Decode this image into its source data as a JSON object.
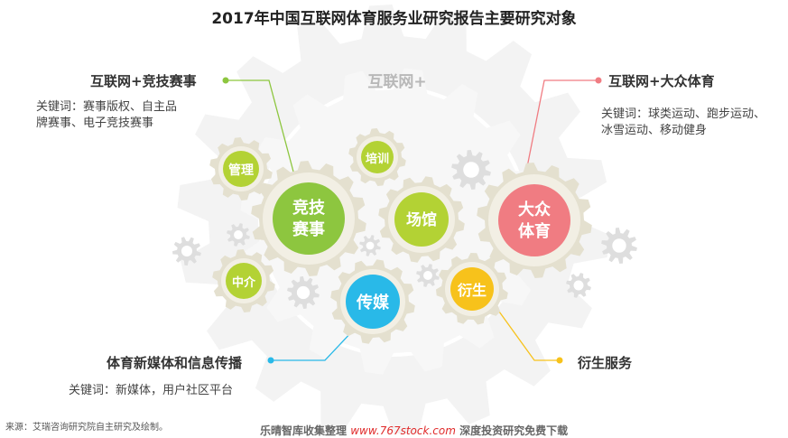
{
  "title": "2017年中国互联网体育服务业研究报告主要研究对象",
  "center_label": "互联网+",
  "gears": {
    "jingji": {
      "line1": "竞技",
      "line2": "赛事"
    },
    "dazhong": {
      "line1": "大众",
      "line2": "体育"
    },
    "changguan": "场馆",
    "chuanmei": "传媒",
    "yansheng": "衍生",
    "guanli": "管理",
    "peixun": "培训",
    "zhongjie": "中介"
  },
  "callouts": {
    "esports": {
      "title": "互联网+竞技赛事",
      "keywords_line1": "关键词：赛事版权、自主品",
      "keywords_line2": "牌赛事、电子竞技赛事"
    },
    "mass_sports": {
      "title": "互联网+大众体育",
      "keywords_line1": "关键词：球类运动、跑步运动、",
      "keywords_line2": "冰雪运动、移动健身"
    },
    "media": {
      "title": "体育新媒体和信息传播",
      "keywords": "关键词：新媒体，用户社区平台"
    },
    "derivative": {
      "title": "衍生服务"
    }
  },
  "colors": {
    "green": "#8dc63f",
    "pink": "#f07c82",
    "cyan": "#29b9e8",
    "yellow": "#f7c21b",
    "lime": "#b3d234",
    "gear_ring": "#e4e0cf",
    "bg_gear": "#f3f3f3"
  },
  "source": "来源：艾瑞咨询研究院自主研究及绘制。",
  "footer": {
    "left": "乐晴智库收集整理",
    "url": "www.767stock.com",
    "right": "深度投资研究免费下载"
  }
}
